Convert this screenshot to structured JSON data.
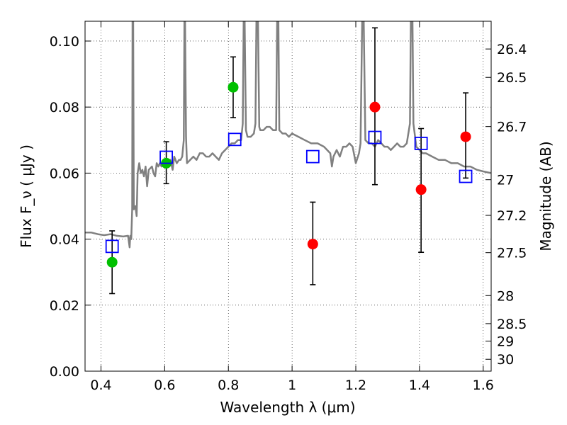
{
  "chart_data": {
    "type": "scatter",
    "title": "",
    "xlabel": "Wavelength  λ (μm)",
    "ylabel": "Flux  F_ν  ( μJy )",
    "ylabel_right": "Magnitude (AB)",
    "xlim": [
      0.35,
      1.625
    ],
    "ylim": [
      0.0,
      0.106
    ],
    "x_ticks": [
      0.4,
      0.6,
      0.8,
      1.0,
      1.2,
      1.4,
      1.6
    ],
    "x_tick_labels": [
      "0.4",
      "0.6",
      "0.8",
      "1",
      "1.2",
      "1.4",
      "1.6"
    ],
    "y_ticks": [
      0.0,
      0.02,
      0.04,
      0.06,
      0.08,
      0.1
    ],
    "y_tick_labels": [
      "0.00",
      "0.02",
      "0.04",
      "0.06",
      "0.08",
      "0.10"
    ],
    "right_ticks": [
      {
        "label": "26.4",
        "flux": 0.0976
      },
      {
        "label": "26.5",
        "flux": 0.089
      },
      {
        "label": "26.7",
        "flux": 0.0741
      },
      {
        "label": "27",
        "flux": 0.058
      },
      {
        "label": "27.2",
        "flux": 0.0472
      },
      {
        "label": "27.5",
        "flux": 0.0359
      },
      {
        "label": "28",
        "flux": 0.0229
      },
      {
        "label": "28.5",
        "flux": 0.0144
      },
      {
        "label": "29",
        "flux": 0.0091
      },
      {
        "label": "30",
        "flux": 0.0036
      }
    ],
    "grid": true,
    "colors": {
      "spectrum": "#808080",
      "green_points": "#00c000",
      "red_points": "#ff0000",
      "model_squares": "#0000ff",
      "errorbar": "#000000"
    },
    "series": [
      {
        "kind": "line",
        "points": [
          [
            0.35,
            0.042
          ],
          [
            0.37,
            0.042
          ],
          [
            0.39,
            0.0415
          ],
          [
            0.41,
            0.0412
          ],
          [
            0.43,
            0.0415
          ],
          [
            0.45,
            0.041
          ],
          [
            0.47,
            0.0408
          ],
          [
            0.485,
            0.041
          ],
          [
            0.49,
            0.0375
          ],
          [
            0.492,
            0.041
          ],
          [
            0.495,
            0.04
          ],
          [
            0.498,
            0.049
          ],
          [
            0.499,
            0.106
          ],
          [
            0.501,
            0.106
          ],
          [
            0.503,
            0.049
          ],
          [
            0.508,
            0.05
          ],
          [
            0.512,
            0.047
          ],
          [
            0.515,
            0.06
          ],
          [
            0.52,
            0.063
          ],
          [
            0.525,
            0.06
          ],
          [
            0.53,
            0.061
          ],
          [
            0.535,
            0.059
          ],
          [
            0.54,
            0.062
          ],
          [
            0.545,
            0.056
          ],
          [
            0.55,
            0.061
          ],
          [
            0.56,
            0.062
          ],
          [
            0.565,
            0.06
          ],
          [
            0.57,
            0.059
          ],
          [
            0.575,
            0.063
          ],
          [
            0.58,
            0.062
          ],
          [
            0.585,
            0.063
          ],
          [
            0.59,
            0.062
          ],
          [
            0.595,
            0.063
          ],
          [
            0.6,
            0.063
          ],
          [
            0.61,
            0.063
          ],
          [
            0.618,
            0.064
          ],
          [
            0.625,
            0.061
          ],
          [
            0.63,
            0.065
          ],
          [
            0.638,
            0.063
          ],
          [
            0.645,
            0.064
          ],
          [
            0.65,
            0.064
          ],
          [
            0.655,
            0.065
          ],
          [
            0.66,
            0.07
          ],
          [
            0.662,
            0.106
          ],
          [
            0.664,
            0.106
          ],
          [
            0.667,
            0.071
          ],
          [
            0.67,
            0.063
          ],
          [
            0.68,
            0.064
          ],
          [
            0.69,
            0.065
          ],
          [
            0.7,
            0.064
          ],
          [
            0.71,
            0.066
          ],
          [
            0.72,
            0.066
          ],
          [
            0.73,
            0.065
          ],
          [
            0.74,
            0.065
          ],
          [
            0.75,
            0.066
          ],
          [
            0.76,
            0.065
          ],
          [
            0.77,
            0.064
          ],
          [
            0.78,
            0.066
          ],
          [
            0.79,
            0.067
          ],
          [
            0.8,
            0.068
          ],
          [
            0.81,
            0.069
          ],
          [
            0.82,
            0.069
          ],
          [
            0.83,
            0.07
          ],
          [
            0.84,
            0.07
          ],
          [
            0.845,
            0.075
          ],
          [
            0.848,
            0.106
          ],
          [
            0.851,
            0.106
          ],
          [
            0.855,
            0.073
          ],
          [
            0.86,
            0.071
          ],
          [
            0.87,
            0.071
          ],
          [
            0.88,
            0.072
          ],
          [
            0.885,
            0.075
          ],
          [
            0.888,
            0.106
          ],
          [
            0.893,
            0.106
          ],
          [
            0.897,
            0.074
          ],
          [
            0.9,
            0.073
          ],
          [
            0.91,
            0.073
          ],
          [
            0.92,
            0.074
          ],
          [
            0.93,
            0.074
          ],
          [
            0.94,
            0.073
          ],
          [
            0.95,
            0.073
          ],
          [
            0.953,
            0.106
          ],
          [
            0.957,
            0.106
          ],
          [
            0.96,
            0.073
          ],
          [
            0.97,
            0.072
          ],
          [
            0.98,
            0.072
          ],
          [
            0.99,
            0.071
          ],
          [
            1.0,
            0.072
          ],
          [
            1.02,
            0.071
          ],
          [
            1.04,
            0.07
          ],
          [
            1.06,
            0.069
          ],
          [
            1.08,
            0.069
          ],
          [
            1.1,
            0.068
          ],
          [
            1.12,
            0.066
          ],
          [
            1.125,
            0.062
          ],
          [
            1.13,
            0.065
          ],
          [
            1.14,
            0.067
          ],
          [
            1.15,
            0.065
          ],
          [
            1.16,
            0.068
          ],
          [
            1.17,
            0.068
          ],
          [
            1.18,
            0.069
          ],
          [
            1.19,
            0.068
          ],
          [
            1.2,
            0.063
          ],
          [
            1.21,
            0.066
          ],
          [
            1.215,
            0.069
          ],
          [
            1.22,
            0.106
          ],
          [
            1.225,
            0.106
          ],
          [
            1.23,
            0.07
          ],
          [
            1.24,
            0.069
          ],
          [
            1.25,
            0.069
          ],
          [
            1.26,
            0.068
          ],
          [
            1.27,
            0.07
          ],
          [
            1.28,
            0.069
          ],
          [
            1.29,
            0.068
          ],
          [
            1.3,
            0.068
          ],
          [
            1.31,
            0.067
          ],
          [
            1.32,
            0.068
          ],
          [
            1.33,
            0.069
          ],
          [
            1.34,
            0.068
          ],
          [
            1.35,
            0.068
          ],
          [
            1.36,
            0.069
          ],
          [
            1.37,
            0.075
          ],
          [
            1.373,
            0.106
          ],
          [
            1.378,
            0.106
          ],
          [
            1.381,
            0.075
          ],
          [
            1.39,
            0.068
          ],
          [
            1.4,
            0.067
          ],
          [
            1.41,
            0.066
          ],
          [
            1.42,
            0.066
          ],
          [
            1.44,
            0.065
          ],
          [
            1.46,
            0.064
          ],
          [
            1.48,
            0.064
          ],
          [
            1.5,
            0.063
          ],
          [
            1.52,
            0.063
          ],
          [
            1.54,
            0.062
          ],
          [
            1.56,
            0.062
          ],
          [
            1.58,
            0.061
          ],
          [
            1.6,
            0.0605
          ],
          [
            1.625,
            0.06
          ]
        ]
      },
      {
        "kind": "points",
        "marker": "circle",
        "color": "#00c000",
        "points": [
          {
            "x": 0.435,
            "y": 0.033
          },
          {
            "x": 0.605,
            "y": 0.063
          },
          {
            "x": 0.815,
            "y": 0.086
          }
        ]
      },
      {
        "kind": "points",
        "marker": "circle",
        "color": "#ff0000",
        "points": [
          {
            "x": 1.065,
            "y": 0.0385
          },
          {
            "x": 1.26,
            "y": 0.08
          },
          {
            "x": 1.405,
            "y": 0.055
          },
          {
            "x": 1.545,
            "y": 0.071
          }
        ]
      },
      {
        "kind": "errorbars",
        "bars": [
          {
            "x": 0.435,
            "low": 0.0235,
            "high": 0.0425
          },
          {
            "x": 0.605,
            "low": 0.0568,
            "high": 0.0695
          },
          {
            "x": 0.815,
            "low": 0.0768,
            "high": 0.0952
          },
          {
            "x": 1.065,
            "low": 0.0262,
            "high": 0.0512
          },
          {
            "x": 1.26,
            "low": 0.0565,
            "high": 0.104
          },
          {
            "x": 1.405,
            "low": 0.036,
            "high": 0.0735
          },
          {
            "x": 1.545,
            "low": 0.0585,
            "high": 0.0843
          }
        ]
      },
      {
        "kind": "points",
        "marker": "square",
        "color": "#0000ff",
        "points": [
          {
            "x": 0.435,
            "y": 0.0378
          },
          {
            "x": 0.605,
            "y": 0.0648
          },
          {
            "x": 0.82,
            "y": 0.0702
          },
          {
            "x": 1.065,
            "y": 0.065
          },
          {
            "x": 1.26,
            "y": 0.0708
          },
          {
            "x": 1.405,
            "y": 0.069
          },
          {
            "x": 1.545,
            "y": 0.059
          }
        ]
      }
    ]
  }
}
